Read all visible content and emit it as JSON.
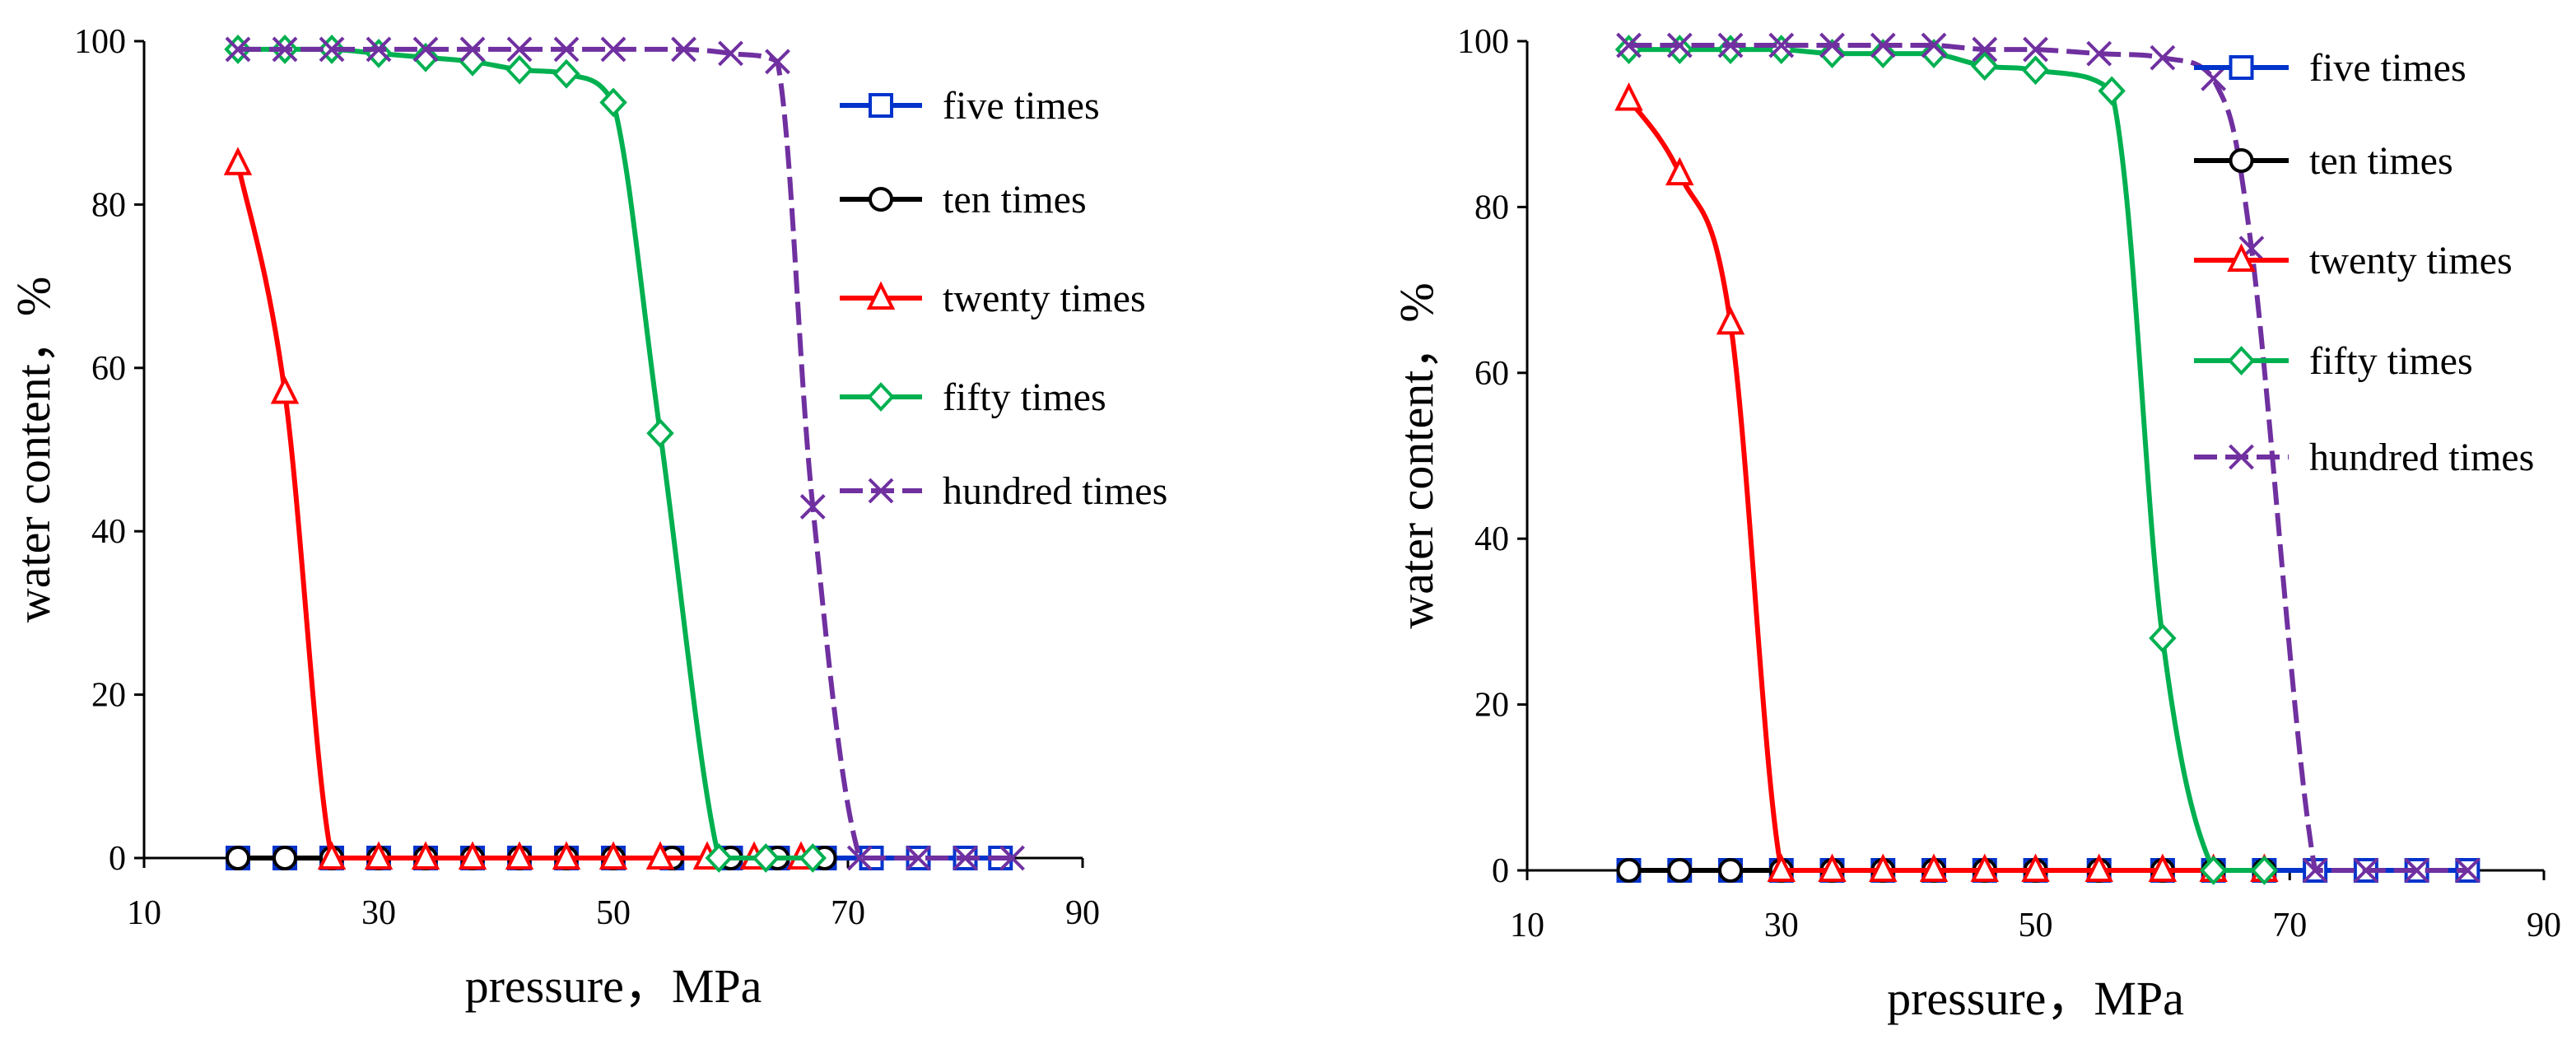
{
  "chart_data": [
    {
      "type": "line",
      "title": "",
      "xlabel": "pressure，MPa",
      "ylabel": "water content，%",
      "xlim": [
        10,
        90
      ],
      "ylim": [
        0,
        100
      ],
      "xticks": [
        10,
        30,
        50,
        70,
        90
      ],
      "yticks": [
        0,
        20,
        40,
        60,
        80,
        100
      ],
      "grid": false,
      "legend_position": "right",
      "series": [
        {
          "name": "five times",
          "color": "#0033cc",
          "marker": "square",
          "x": [
            18,
            22,
            26,
            30,
            34,
            38,
            42,
            46,
            50,
            55,
            60,
            64,
            68,
            72,
            76,
            80,
            83
          ],
          "y": [
            0,
            0,
            0,
            0,
            0,
            0,
            0,
            0,
            0,
            0,
            0,
            0,
            0,
            0,
            0,
            0,
            0
          ]
        },
        {
          "name": "ten times",
          "color": "#000000",
          "marker": "circle",
          "x": [
            18,
            22,
            26,
            30,
            34,
            38,
            42,
            46,
            50,
            55,
            60,
            64,
            68
          ],
          "y": [
            0,
            0,
            0,
            0,
            0,
            0,
            0,
            0,
            0,
            0,
            0,
            0,
            0
          ]
        },
        {
          "name": "twenty times",
          "color": "#ff0000",
          "marker": "triangle",
          "x": [
            18,
            22,
            26,
            30,
            34,
            38,
            42,
            46,
            50,
            54,
            58,
            62,
            66
          ],
          "y": [
            85,
            57,
            0,
            0,
            0,
            0,
            0,
            0,
            0,
            0,
            0,
            0,
            0
          ]
        },
        {
          "name": "fifty times",
          "color": "#00b050",
          "marker": "diamond",
          "x": [
            18,
            22,
            26,
            30,
            34,
            38,
            42,
            46,
            50,
            54,
            59,
            63,
            67
          ],
          "y": [
            99,
            99,
            99,
            98.5,
            98,
            97.5,
            96.5,
            96,
            92.5,
            52,
            0,
            0,
            0
          ]
        },
        {
          "name": "hundred times",
          "color": "#7030a0",
          "marker": "x",
          "x": [
            18,
            22,
            26,
            30,
            34,
            38,
            42,
            46,
            50,
            56,
            60,
            64,
            67,
            71,
            76,
            80,
            84
          ],
          "y": [
            99,
            99,
            99,
            99,
            99,
            99,
            99,
            99,
            99,
            99,
            98.5,
            97.5,
            43,
            0,
            0,
            0,
            0
          ]
        }
      ]
    },
    {
      "type": "line",
      "title": "",
      "xlabel": "pressure，MPa",
      "ylabel": "water content，%",
      "xlim": [
        10,
        90
      ],
      "ylim": [
        0,
        100
      ],
      "xticks": [
        10,
        30,
        50,
        70,
        90
      ],
      "yticks": [
        0,
        20,
        40,
        60,
        80,
        100
      ],
      "grid": false,
      "legend_position": "right",
      "series": [
        {
          "name": "five times",
          "color": "#0033cc",
          "marker": "square",
          "x": [
            18,
            22,
            26,
            30,
            34,
            38,
            42,
            46,
            50,
            55,
            60,
            64,
            68,
            72,
            76,
            80,
            84
          ],
          "y": [
            0,
            0,
            0,
            0,
            0,
            0,
            0,
            0,
            0,
            0,
            0,
            0,
            0,
            0,
            0,
            0,
            0
          ]
        },
        {
          "name": "ten times",
          "color": "#000000",
          "marker": "circle",
          "x": [
            18,
            22,
            26,
            30,
            34,
            38,
            42,
            46,
            50,
            55,
            60,
            64,
            68
          ],
          "y": [
            0,
            0,
            0,
            0,
            0,
            0,
            0,
            0,
            0,
            0,
            0,
            0,
            0
          ]
        },
        {
          "name": "twenty times",
          "color": "#ff0000",
          "marker": "triangle",
          "x": [
            18,
            22,
            26,
            30,
            34,
            38,
            42,
            46,
            50,
            55,
            60,
            64,
            68
          ],
          "y": [
            93,
            84,
            66,
            0,
            0,
            0,
            0,
            0,
            0,
            0,
            0,
            0,
            0
          ]
        },
        {
          "name": "fifty times",
          "color": "#00b050",
          "marker": "diamond",
          "x": [
            18,
            22,
            26,
            30,
            34,
            38,
            42,
            46,
            50,
            56,
            60,
            64,
            68
          ],
          "y": [
            99,
            99,
            99,
            99,
            98.5,
            98.5,
            98.5,
            97,
            96.5,
            94,
            28,
            0,
            0
          ]
        },
        {
          "name": "hundred times",
          "color": "#7030a0",
          "marker": "x",
          "x": [
            18,
            22,
            26,
            30,
            34,
            38,
            42,
            46,
            50,
            55,
            60,
            64,
            67,
            72,
            76,
            80,
            84
          ],
          "y": [
            99.5,
            99.5,
            99.5,
            99.5,
            99.5,
            99.5,
            99.5,
            99,
            99,
            98.5,
            98,
            95.5,
            75,
            0,
            0,
            0,
            0
          ]
        }
      ]
    }
  ]
}
